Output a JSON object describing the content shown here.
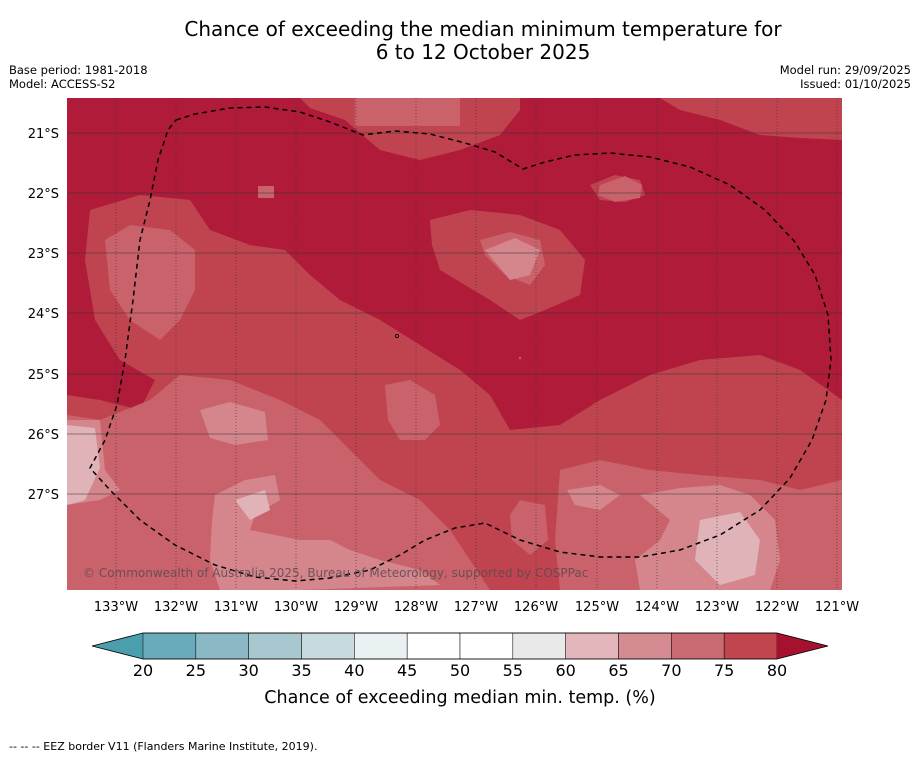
{
  "header": {
    "title_line1": "Chance of exceeding the median minimum temperature for",
    "title_line2": "6 to 12 October 2025",
    "base_period": "Base period: 1981-2018",
    "model": "Model: ACCESS-S2",
    "model_run": "Model run: 29/09/2025",
    "issued": "Issued: 01/10/2025"
  },
  "map": {
    "lat_ticks": [
      "21°S",
      "22°S",
      "23°S",
      "24°S",
      "25°S",
      "26°S",
      "27°S"
    ],
    "lon_ticks": [
      "133°W",
      "132°W",
      "131°W",
      "130°W",
      "129°W",
      "128°W",
      "127°W",
      "126°W",
      "125°W",
      "124°W",
      "123°W",
      "122°W",
      "121°W"
    ],
    "copyright": "© Commonwealth of Australia 2025, Bureau of Meteorology, supported by COSPPac",
    "colors": {
      "above_80": "#b01b3a",
      "75_80": "#c0444f",
      "70_75": "#c9626b",
      "65_70": "#d4868c",
      "60_65": "#e0b3b8"
    }
  },
  "chart_data": {
    "type": "heatmap",
    "title": "Chance of exceeding the median minimum temperature for 6 to 12 October 2025",
    "colorbar": {
      "label": "Chance of exceeding median min. temp. (%)",
      "tick_labels": [
        "20",
        "25",
        "30",
        "35",
        "40",
        "45",
        "50",
        "55",
        "60",
        "65",
        "70",
        "75",
        "80"
      ],
      "segment_colors": [
        "#6aabbb",
        "#8ab9c5",
        "#a8c7ce",
        "#c9dade",
        "#eaf1f3",
        "#ffffff",
        "#ffffff",
        "#e9e9e9",
        "#e2b6bb",
        "#d58b92",
        "#c96a73",
        "#c1454f"
      ],
      "under_color": "#4a9ead",
      "over_color": "#a5112e",
      "extend": "both"
    }
  },
  "footer": {
    "legend_text": "--  --  -- EEZ border V11 (Flanders Marine Institute, 2019)."
  }
}
